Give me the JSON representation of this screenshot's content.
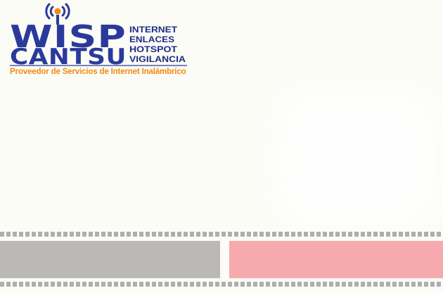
{
  "logo": {
    "name_top": "WISP",
    "name_bottom": "CANTSU",
    "services": [
      "INTERNET",
      "ENLACES",
      "HOTSPOT",
      "VIGILANCIA"
    ],
    "tagline": "Proveedor de Servicios de Internet Inalámbrico",
    "icon": "wifi-antenna-icon"
  },
  "colors": {
    "background": "#fbfcf6",
    "brand_blue": "#2a3a9c",
    "brand_orange": "#ef8a12",
    "left_panel": "#bbb8b6",
    "right_panel": "#f7aaae",
    "dot_strip": "#aeaeae"
  }
}
